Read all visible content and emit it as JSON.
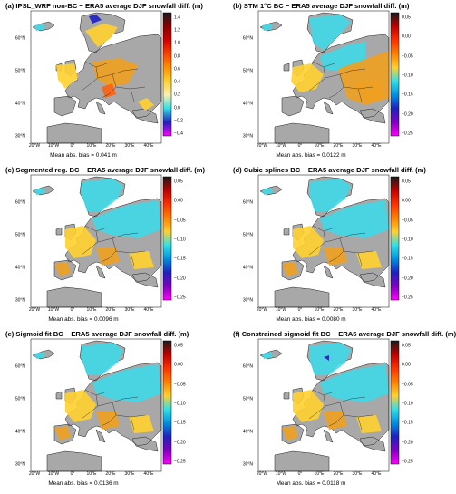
{
  "panels": [
    {
      "title": "(a) IPSL_WRF non-BC − ERA5 average DJF snowfall diff. (m)",
      "bias": "Mean abs. bias = 0.041 m",
      "ticks": [
        "1.4",
        "1.2",
        "1.0",
        "0.8",
        "0.6",
        "0.4",
        "0.2",
        "0.0",
        "−0.2",
        "−0.4"
      ],
      "mode": "wide"
    },
    {
      "title": "(b) STM 1°C BC − ERA5 average DJF snowfall diff. (m)",
      "bias": "Mean abs. bias = 0.0122 m",
      "ticks": [
        "0.05",
        "0.00",
        "−0.05",
        "−0.10",
        "−0.15",
        "−0.20",
        "−0.25"
      ],
      "mode": "narrow"
    },
    {
      "title": "(c) Segmented reg. BC − ERA5 average DJF snowfall diff. (m)",
      "bias": "Mean abs. bias = 0.0096 m",
      "ticks": [
        "0.05",
        "0.00",
        "−0.05",
        "−0.10",
        "−0.15",
        "−0.20",
        "−0.25"
      ],
      "mode": "narrow"
    },
    {
      "title": "(d) Cubic splines BC − ERA5 average DJF snowfall diff. (m)",
      "bias": "Mean abs. bias = 0.0080 m",
      "ticks": [
        "0.05",
        "0.00",
        "−0.05",
        "−0.10",
        "−0.15",
        "−0.20",
        "−0.25"
      ],
      "mode": "narrow"
    },
    {
      "title": "(e) Sigmoid fit BC − ERA5 average DJF snowfall diff. (m)",
      "bias": "Mean abs. bias = 0.0136 m",
      "ticks": [
        "0.05",
        "0.00",
        "−0.05",
        "−0.10",
        "−0.15",
        "−0.20",
        "−0.25"
      ],
      "mode": "narrow"
    },
    {
      "title": "(f) Constrained sigmoid fit BC − ERA5 average DJF snowfall diff. (m)",
      "bias": "Mean abs. bias = 0.0118 m",
      "ticks": [
        "0.05",
        "0.00",
        "−0.05",
        "−0.10",
        "−0.15",
        "−0.20",
        "−0.25"
      ],
      "mode": "narrow"
    }
  ],
  "lon_labels": [
    "20°W",
    "10°W",
    "0°",
    "10°E",
    "20°E",
    "30°E",
    "40°E"
  ],
  "lat_labels": [
    "60°N",
    "50°N",
    "40°N",
    "30°N"
  ],
  "colors": {
    "land_gray": "#a8a8a8",
    "cyan": "#3fd8e8",
    "orange": "#f0a020",
    "coast": "#222222",
    "colorbar_stops": [
      "#1a1a1a",
      "#c00000",
      "#ff3000",
      "#ff8000",
      "#ffd030",
      "#30e0e8",
      "#0090e0",
      "#2020c0",
      "#8000c0",
      "#ff00ff"
    ]
  }
}
